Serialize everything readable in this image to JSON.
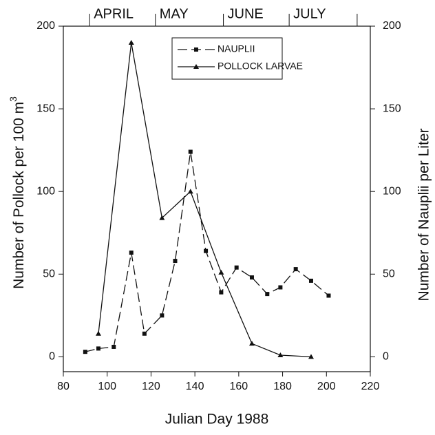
{
  "chart_data": {
    "type": "line",
    "xlabel": "Julian Day 1988",
    "ylabel": "Number of Pollock per 100 m",
    "ylabel_sup": "3",
    "y2label": "Number of Nauplii per Liter",
    "xlim": [
      80,
      220
    ],
    "xticks": [
      80,
      100,
      120,
      140,
      160,
      180,
      200,
      220
    ],
    "ylim": [
      -9,
      200
    ],
    "yticks": [
      0,
      50,
      100,
      150,
      200
    ],
    "y2lim": [
      -9,
      200
    ],
    "y2ticks": [
      0,
      50,
      100,
      150,
      200
    ],
    "top_axis": {
      "ticks": [
        92,
        122,
        153,
        183,
        214
      ],
      "labels": [
        "APRIL",
        "MAY",
        "JUNE",
        "JULY"
      ]
    },
    "legend": "top-center",
    "series": [
      {
        "name": "NAUPLII",
        "color": "#111111",
        "dash": true,
        "marker": "square",
        "axis": "y2",
        "x": [
          90,
          96,
          103,
          111,
          117,
          125,
          131,
          138,
          145,
          152,
          159,
          166,
          173,
          179,
          186,
          193,
          201
        ],
        "values": [
          3,
          5,
          6,
          63,
          14,
          25,
          58,
          124,
          64,
          39,
          54,
          48,
          38,
          42,
          53,
          46,
          37
        ]
      },
      {
        "name": "POLLOCK LARVAE",
        "color": "#111111",
        "dash": false,
        "marker": "triangle",
        "x": [
          96,
          111,
          125,
          138,
          152,
          166,
          179,
          193
        ],
        "values": [
          14,
          190,
          84,
          100,
          51,
          8,
          1,
          0
        ]
      }
    ]
  }
}
